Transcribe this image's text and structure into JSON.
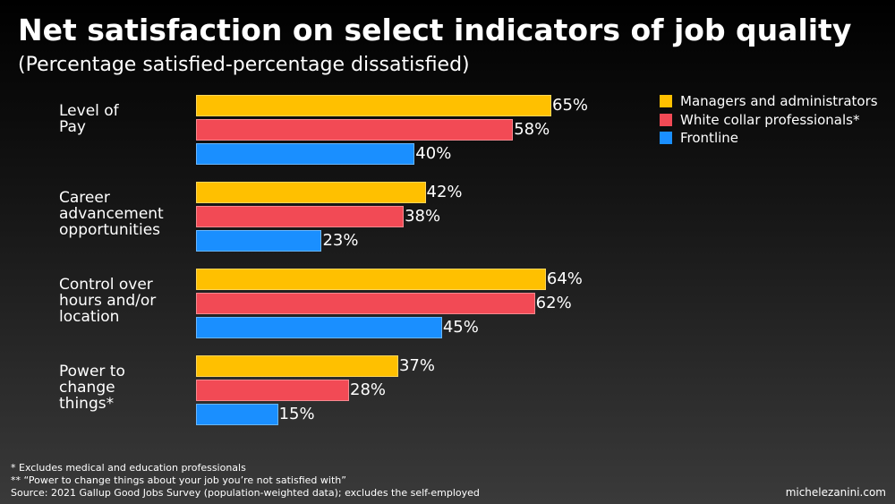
{
  "chart_data": {
    "type": "bar",
    "orientation": "horizontal",
    "title": "Net satisfaction on select indicators of job quality",
    "subtitle": "(Percentage satisfied-percentage dissatisfied)",
    "categories": [
      "Level of\nPay",
      "Career\nadvancement\nopportunities",
      "Control over\nhours and/or\nlocation",
      "Power to\nchange\nthings*"
    ],
    "series": [
      {
        "name": "Managers and administrators",
        "color": "#ffc000",
        "values": [
          65,
          42,
          64,
          37
        ],
        "value_labels": [
          "65%",
          "42%",
          "64%",
          "37%"
        ]
      },
      {
        "name": "White collar professionals*",
        "color": "#f24a55",
        "values": [
          58,
          38,
          62,
          28
        ],
        "value_labels": [
          "58%",
          "38%",
          "62%",
          "28%"
        ]
      },
      {
        "name": "Frontline",
        "color": "#1a8fff",
        "values": [
          40,
          23,
          45,
          15
        ],
        "value_labels": [
          "40%",
          "23%",
          "45%",
          "15%"
        ]
      }
    ],
    "legend": "top-right",
    "footnotes": [
      "* Excludes medical and education professionals",
      "** “Power to change things about your job you’re not satisfied with”",
      "Source: 2021 Gallup Good Jobs Survey (population-weighted data); excludes the self-employed"
    ],
    "credit": "michelezanini.com"
  }
}
